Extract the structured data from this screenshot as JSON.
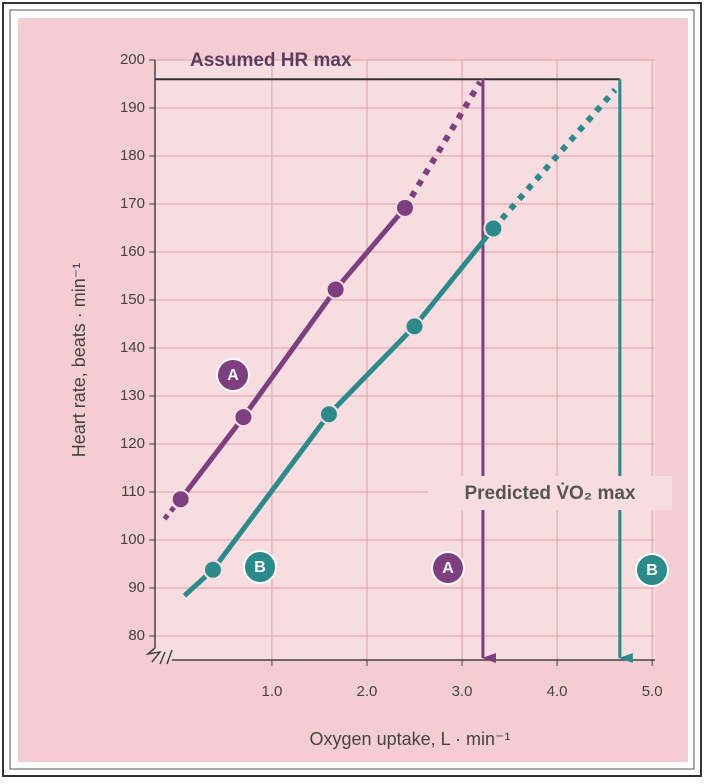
{
  "chart_data": {
    "type": "line",
    "x_label": "Oxygen uptake, L · min⁻¹",
    "y_label": "Heart rate, beats · min⁻¹",
    "annotations": {
      "hr_max_label": "Assumed HR max",
      "vo2_label": "Predicted V̇O₂ max"
    },
    "hr_max": 196,
    "xlim": [
      -0.23,
      5.03
    ],
    "ylim": [
      75,
      200
    ],
    "xticks": [
      {
        "value": 1,
        "label": "1.0"
      },
      {
        "value": 2,
        "label": "2.0"
      },
      {
        "value": 3,
        "label": "3.0"
      },
      {
        "value": 4,
        "label": "4.0"
      },
      {
        "value": 5,
        "label": "5.0"
      }
    ],
    "yticks": [
      80,
      90,
      100,
      110,
      120,
      130,
      140,
      150,
      160,
      170,
      180,
      190,
      200
    ],
    "grid": true,
    "series": [
      {
        "name": "A",
        "color": "#7d3f80",
        "x": [
          0.04,
          0.7,
          1.67,
          2.4
        ],
        "values": [
          108.5,
          125.6,
          152.2,
          169.2
        ],
        "line_start": [
          -0.13,
          104.4
        ],
        "line_end": [
          3.19,
          195.4
        ],
        "vo2max": 3.22
      },
      {
        "name": "B",
        "color": "#2b8a8c",
        "x": [
          0.38,
          1.6,
          2.5,
          3.33
        ],
        "values": [
          93.8,
          126.2,
          144.5,
          164.9
        ],
        "line_start": [
          0.08,
          88.4
        ],
        "line_end": [
          4.61,
          193.8
        ],
        "vo2max": 4.66
      }
    ]
  }
}
